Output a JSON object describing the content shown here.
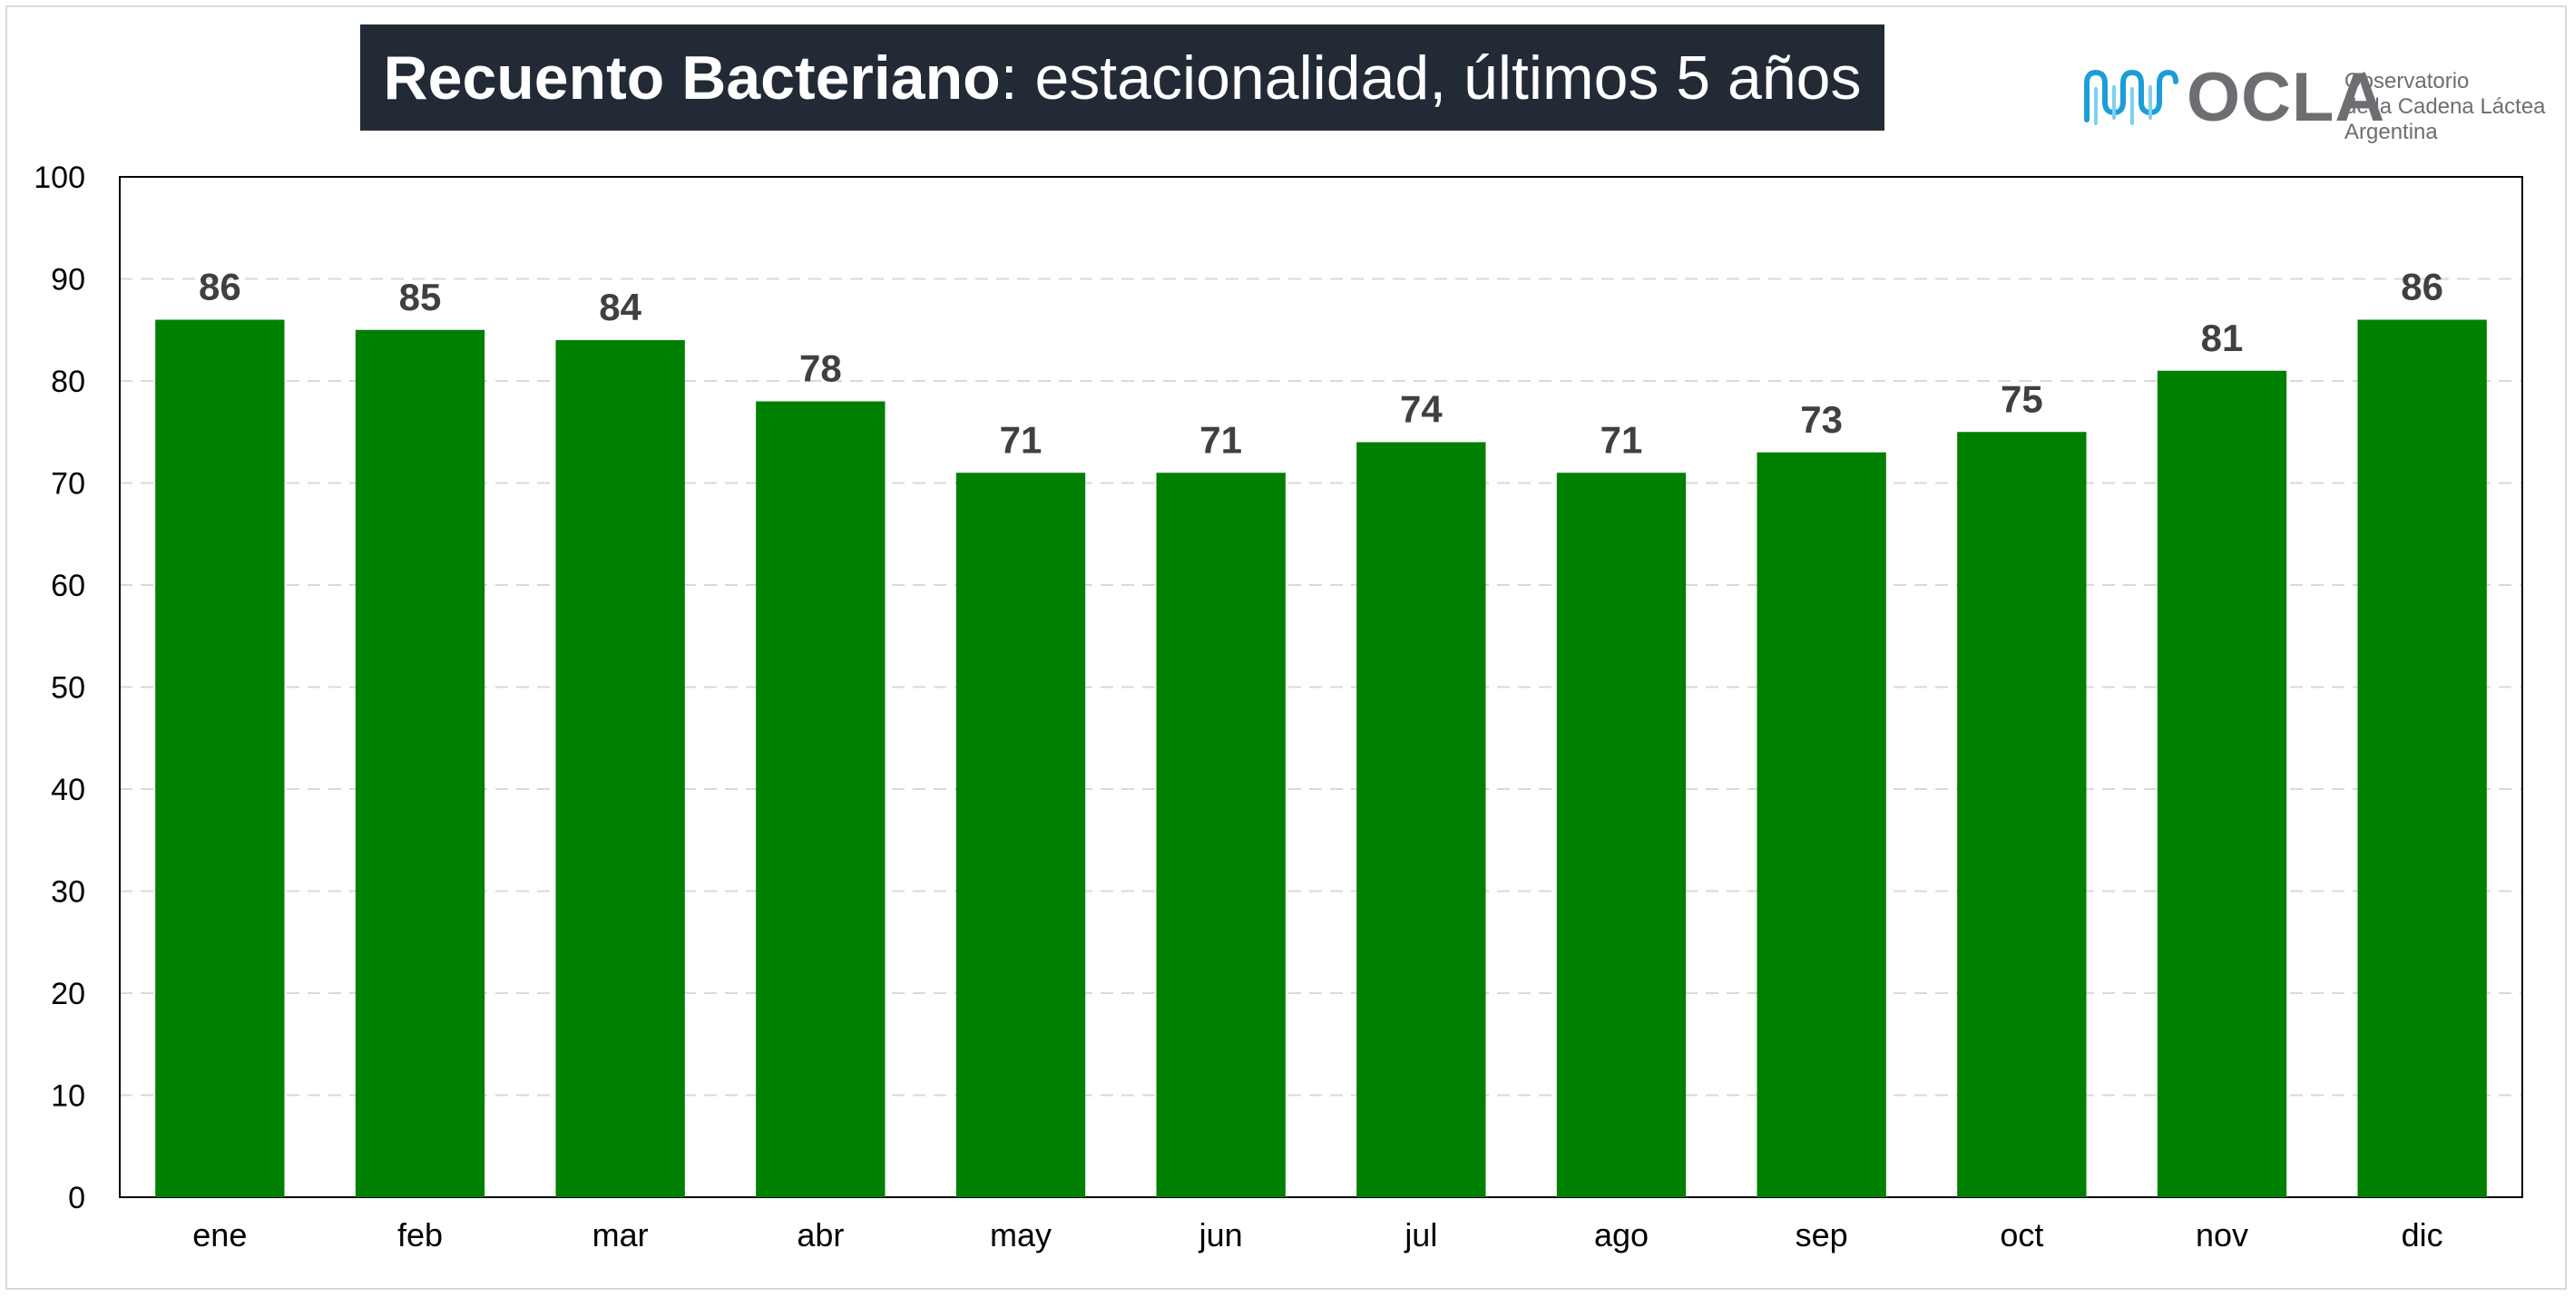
{
  "chart_data": {
    "type": "bar",
    "title_bold": "Recuento Bacteriano",
    "title_rest": ": estacionalidad, últimos 5 años",
    "categories": [
      "ene",
      "feb",
      "mar",
      "abr",
      "may",
      "jun",
      "jul",
      "ago",
      "sep",
      "oct",
      "nov",
      "dic"
    ],
    "series": [
      {
        "values": [
          86,
          85,
          84,
          78,
          71,
          71,
          74,
          71,
          73,
          75,
          81,
          86
        ]
      }
    ],
    "y_ticks": [
      0,
      10,
      20,
      30,
      40,
      50,
      60,
      70,
      80,
      90,
      100
    ],
    "ylim": [
      0,
      100
    ],
    "xlabel": "",
    "ylabel": "",
    "grid": true,
    "legend": "none",
    "colors": {
      "bar": "#008000",
      "label": "#404040",
      "title_bg": "#222a35",
      "grid": "#d9d9d9"
    }
  },
  "logo": {
    "name": "OCLA",
    "line1": "Observatorio",
    "line2": "de la Cadena Láctea",
    "line3": "Argentina",
    "mark_colors": [
      "#1b9ed8",
      "#7fd0ee"
    ]
  }
}
